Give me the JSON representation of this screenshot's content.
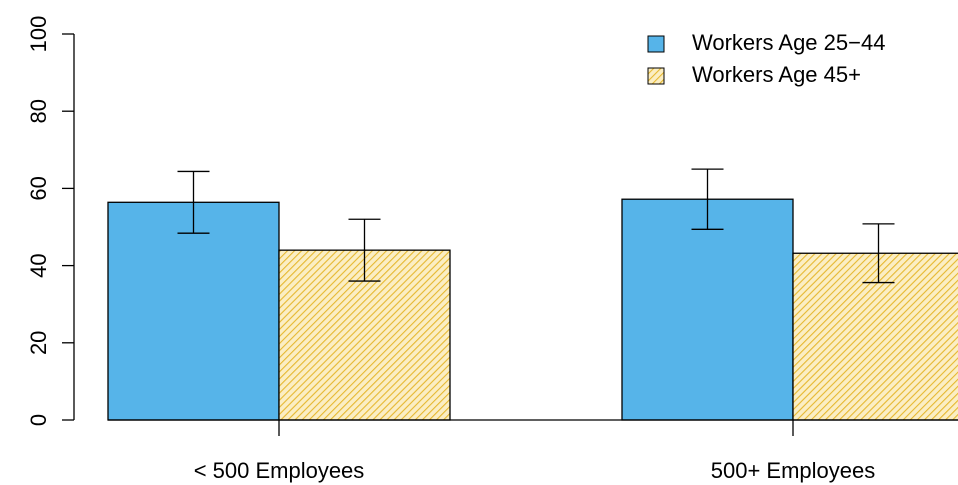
{
  "chart_data": {
    "type": "bar",
    "categories": [
      "< 500 Employees",
      "500+ Employees"
    ],
    "series": [
      {
        "name": "Workers Age 25−44",
        "color": "#56b4e9",
        "hatch": false,
        "values": [
          56.4,
          57.2
        ],
        "errors": [
          8,
          7.8
        ]
      },
      {
        "name": "Workers Age 45+",
        "color": "#e6b830",
        "hatch": true,
        "values": [
          44,
          43.2
        ],
        "errors": [
          8,
          7.6
        ]
      }
    ],
    "ylim": [
      0,
      100
    ],
    "yticks": [
      0,
      20,
      40,
      60,
      80,
      100
    ],
    "legend": "top-right"
  }
}
